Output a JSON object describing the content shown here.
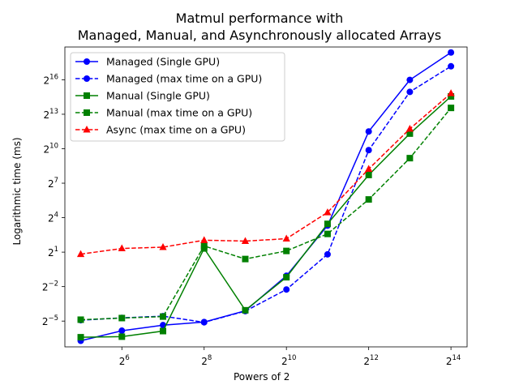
{
  "chart_data": {
    "type": "line",
    "title": [
      "Matmul performance with",
      "Managed, Manual, and Asynchronously allocated Arrays"
    ],
    "xlabel": "Powers of 2",
    "ylabel": "Logarithmic time (ms)",
    "x_scale": "log2",
    "y_scale": "log2",
    "x": [
      32,
      64,
      128,
      256,
      512,
      1024,
      2048,
      4096,
      8192,
      16384
    ],
    "xlim": [
      24.5,
      21500
    ],
    "ylim": [
      0.0066,
      473000
    ],
    "x_ticks": [
      {
        "base": "2",
        "exp": "6",
        "value": 64
      },
      {
        "base": "2",
        "exp": "8",
        "value": 256
      },
      {
        "base": "2",
        "exp": "10",
        "value": 1024
      },
      {
        "base": "2",
        "exp": "12",
        "value": 4096
      },
      {
        "base": "2",
        "exp": "14",
        "value": 16384
      }
    ],
    "y_ticks": [
      {
        "base": "2",
        "exp": "−5",
        "value": 0.03125
      },
      {
        "base": "2",
        "exp": "−2",
        "value": 0.25
      },
      {
        "base": "2",
        "exp": "1",
        "value": 2
      },
      {
        "base": "2",
        "exp": "4",
        "value": 16
      },
      {
        "base": "2",
        "exp": "7",
        "value": 128
      },
      {
        "base": "2",
        "exp": "10",
        "value": 1024
      },
      {
        "base": "2",
        "exp": "13",
        "value": 8192
      },
      {
        "base": "2",
        "exp": "16",
        "value": 65536
      }
    ],
    "legend_position": "upper-left",
    "series": [
      {
        "name": "Managed (Single GPU)",
        "color": "#0000ff",
        "linestyle": "solid",
        "marker": "circle",
        "values": [
          0.0095,
          0.0175,
          0.0245,
          0.0295,
          0.058,
          0.48,
          9.9,
          2900,
          65000,
          340000
        ]
      },
      {
        "name": "Managed (max time on a GPU)",
        "color": "#0000ff",
        "linestyle": "dashed",
        "marker": "circle",
        "values": [
          0.033,
          0.038,
          0.042,
          0.029,
          0.057,
          0.21,
          1.75,
          940,
          31500,
          148000
        ]
      },
      {
        "name": "Manual (Single GPU)",
        "color": "#008000",
        "linestyle": "solid",
        "marker": "square",
        "values": [
          0.0118,
          0.0122,
          0.0171,
          2.5,
          0.06,
          0.44,
          11.0,
          210,
          2550,
          24000
        ]
      },
      {
        "name": "Manual (max time on a GPU)",
        "color": "#008000",
        "linestyle": "dashed",
        "marker": "square",
        "values": [
          0.034,
          0.0375,
          0.041,
          2.9,
          1.32,
          2.15,
          6.0,
          48,
          580,
          12000
        ]
      },
      {
        "name": "Async (max time on a GPU)",
        "color": "#ff0000",
        "linestyle": "dashed",
        "marker": "triangle",
        "values": [
          1.77,
          2.5,
          2.7,
          4.1,
          3.9,
          4.5,
          22,
          302,
          3400,
          29000
        ]
      }
    ]
  }
}
